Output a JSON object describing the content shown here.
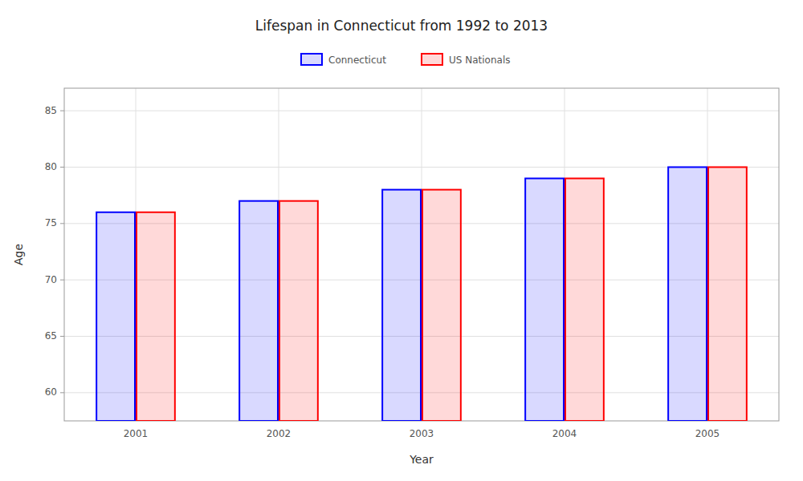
{
  "chart_data": {
    "type": "bar",
    "title": "Lifespan in Connecticut from 1992 to 2013",
    "xlabel": "Year",
    "ylabel": "Age",
    "categories": [
      "2001",
      "2002",
      "2003",
      "2004",
      "2005"
    ],
    "series": [
      {
        "name": "Connecticut",
        "color": "#0000ff",
        "values": [
          76,
          77,
          78,
          79,
          80
        ]
      },
      {
        "name": "US Nationals",
        "color": "#ff0000",
        "values": [
          76,
          77,
          78,
          79,
          80
        ]
      }
    ],
    "ylim": [
      57.5,
      87
    ],
    "yticks": [
      60,
      65,
      70,
      75,
      80,
      85
    ],
    "grid": true,
    "legend": "top"
  }
}
